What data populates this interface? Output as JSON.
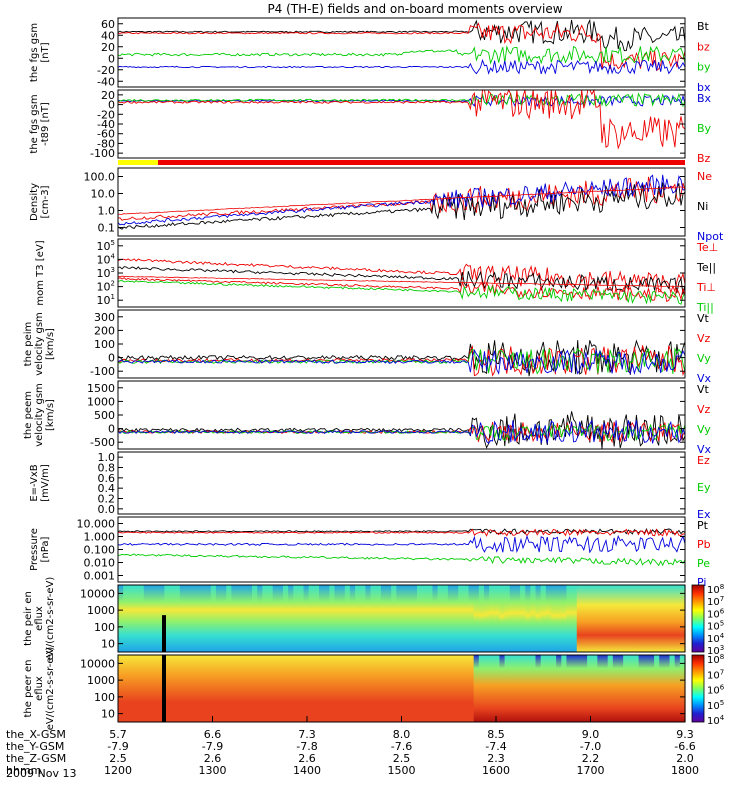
{
  "title": "P4 (TH-E) fields and on-board moments overview",
  "date": "2009 Nov 13",
  "colors": {
    "black": "#000000",
    "red": "#ee0000",
    "green": "#00cc00",
    "blue": "#0000dd",
    "yellow": "#ffff00"
  },
  "xaxis": {
    "row_labels": [
      "the_X-GSM",
      "the_Y-GSM",
      "the_Z-GSM",
      "hhmm"
    ],
    "ticks": [
      {
        "x": "5.7",
        "y": "-7.9",
        "z": "2.5",
        "hhmm": "1200"
      },
      {
        "x": "6.6",
        "y": "-7.9",
        "z": "2.6",
        "hhmm": "1300"
      },
      {
        "x": "7.3",
        "y": "-7.8",
        "z": "2.6",
        "hhmm": "1400"
      },
      {
        "x": "8.0",
        "y": "-7.6",
        "z": "2.5",
        "hhmm": "1500"
      },
      {
        "x": "8.5",
        "y": "-7.4",
        "z": "2.3",
        "hhmm": "1600"
      },
      {
        "x": "9.0",
        "y": "-7.0",
        "z": "2.2",
        "hhmm": "1700"
      },
      {
        "x": "9.3",
        "y": "-6.6",
        "z": "2.0",
        "hhmm": "1800"
      }
    ]
  },
  "chart_data": [
    {
      "type": "line",
      "ylabel": "the fgs gsm [nT]",
      "yticks": [
        "60",
        "40",
        "20",
        "0",
        "-20",
        "-40"
      ],
      "ylim": [
        -40,
        60
      ],
      "series": [
        {
          "name": "Bt",
          "color": "black"
        },
        {
          "name": "bz",
          "color": "red"
        },
        {
          "name": "by",
          "color": "green"
        },
        {
          "name": "bx",
          "color": "blue"
        }
      ]
    },
    {
      "type": "line",
      "ylabel": "the fgs gsm -t89 [nT]",
      "yticks": [
        "20",
        "0",
        "-20",
        "-40",
        "-60",
        "-80",
        "-100"
      ],
      "ylim": [
        -100,
        20
      ],
      "series": [
        {
          "name": "Bx",
          "color": "blue"
        },
        {
          "name": "By",
          "color": "green"
        },
        {
          "name": "Bz",
          "color": "red"
        }
      ]
    },
    {
      "type": "line",
      "ylabel": "Density [cm-3]",
      "yticks": [
        "100.0",
        "10.0",
        "1.0",
        "0.1"
      ],
      "log": true,
      "series": [
        {
          "name": "Ne",
          "color": "red"
        },
        {
          "name": "Ni",
          "color": "black"
        },
        {
          "name": "Npot",
          "color": "blue"
        }
      ]
    },
    {
      "type": "line",
      "ylabel": "mom T3 [eV]",
      "yticks": [
        "10^5",
        "10^4",
        "10^3",
        "10^2",
        "10^1"
      ],
      "log": true,
      "series": [
        {
          "name": "Te⊥",
          "color": "red"
        },
        {
          "name": "Te||",
          "color": "black"
        },
        {
          "name": "Ti⊥",
          "color": "red"
        },
        {
          "name": "Ti||",
          "color": "green"
        }
      ]
    },
    {
      "type": "line",
      "ylabel": "the peim velocity gsm [km/s]",
      "yticks": [
        "300",
        "200",
        "100",
        "0",
        "-100"
      ],
      "ylim": [
        -100,
        300
      ],
      "series": [
        {
          "name": "Vt",
          "color": "black"
        },
        {
          "name": "Vz",
          "color": "red"
        },
        {
          "name": "Vy",
          "color": "green"
        },
        {
          "name": "Vx",
          "color": "blue"
        }
      ]
    },
    {
      "type": "line",
      "ylabel": "the peem velocity gsm [km/s]",
      "yticks": [
        "1500",
        "1000",
        "500",
        "0",
        "-500"
      ],
      "ylim": [
        -500,
        1500
      ],
      "series": [
        {
          "name": "Vt",
          "color": "black"
        },
        {
          "name": "Vz",
          "color": "red"
        },
        {
          "name": "Vy",
          "color": "green"
        },
        {
          "name": "Vx",
          "color": "blue"
        }
      ]
    },
    {
      "type": "line",
      "ylabel": "E=-VxB [mV/m]",
      "yticks": [
        "1.0",
        "0.8",
        "0.6",
        "0.4",
        "0.2",
        "0.0"
      ],
      "ylim": [
        0,
        1
      ],
      "series": [
        {
          "name": "Ez",
          "color": "red"
        },
        {
          "name": "Ey",
          "color": "green"
        },
        {
          "name": "Ex",
          "color": "blue"
        }
      ]
    },
    {
      "type": "line",
      "ylabel": "Pressure [nPa]",
      "yticks": [
        "10.000",
        "1.000",
        "0.100",
        "0.010",
        "0.001"
      ],
      "log": true,
      "series": [
        {
          "name": "Pt",
          "color": "black"
        },
        {
          "name": "Pb",
          "color": "red"
        },
        {
          "name": "Pe",
          "color": "green"
        },
        {
          "name": "Pi",
          "color": "blue"
        }
      ]
    },
    {
      "type": "heatmap",
      "ylabel": "the peir en eflux eV/(cm2-s-sr-eV)",
      "yticks": [
        "10000",
        "1000",
        "100",
        "10"
      ],
      "log": true,
      "colorbar": [
        "10^8",
        "10^7",
        "10^6",
        "10^5",
        "10^4",
        "10^3"
      ]
    },
    {
      "type": "heatmap",
      "ylabel": "the peer en eflux eV/(cm2-s-sr-eV)",
      "yticks": [
        "10000",
        "1000",
        "100",
        "10"
      ],
      "log": true,
      "colorbar": [
        "10^8",
        "10^7",
        "10^6",
        "10^5",
        "10^4"
      ]
    }
  ]
}
